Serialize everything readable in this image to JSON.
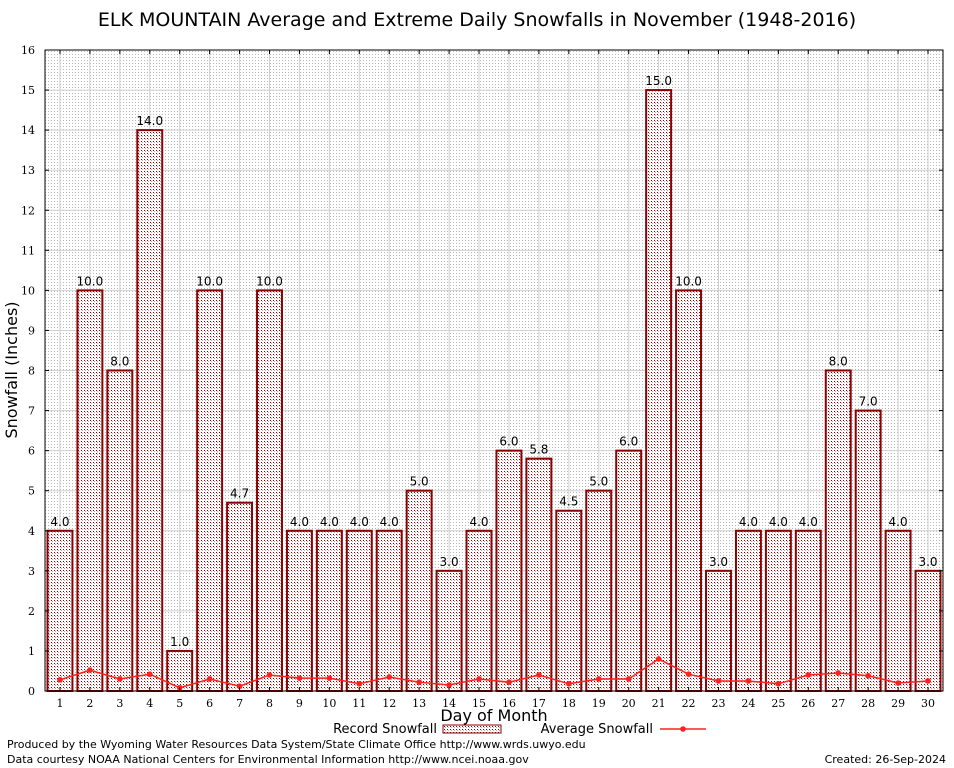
{
  "chart_data": {
    "type": "bar",
    "title": "ELK MOUNTAIN Average and Extreme Daily Snowfalls in November (1948-2016)",
    "xlabel": "Day of Month",
    "ylabel": "Snowfall (Inches)",
    "ylim": [
      0,
      16
    ],
    "yticks": [
      "0",
      "1",
      "2",
      "3",
      "4",
      "5",
      "6",
      "7",
      "8",
      "9",
      "10",
      "11",
      "12",
      "13",
      "14",
      "15",
      "16"
    ],
    "categories": [
      "1",
      "2",
      "3",
      "4",
      "5",
      "6",
      "7",
      "8",
      "9",
      "10",
      "11",
      "12",
      "13",
      "14",
      "15",
      "16",
      "17",
      "18",
      "19",
      "20",
      "21",
      "22",
      "23",
      "24",
      "25",
      "26",
      "27",
      "28",
      "29",
      "30"
    ],
    "series": [
      {
        "name": "Record Snowfall",
        "type": "bar",
        "color": "#8b0000",
        "values": [
          4.0,
          10.0,
          8.0,
          14.0,
          1.0,
          10.0,
          4.7,
          10.0,
          4.0,
          4.0,
          4.0,
          4.0,
          5.0,
          3.0,
          4.0,
          6.0,
          5.8,
          4.5,
          5.0,
          6.0,
          15.0,
          10.0,
          3.0,
          4.0,
          4.0,
          4.0,
          8.0,
          7.0,
          4.0,
          3.0
        ],
        "labels": [
          "4.0",
          "10.0",
          "8.0",
          "14.0",
          "1.0",
          "10.0",
          "4.7",
          "10.0",
          "4.0",
          "4.0",
          "4.0",
          "4.0",
          "5.0",
          "3.0",
          "4.0",
          "6.0",
          "5.8",
          "4.5",
          "5.0",
          "6.0",
          "15.0",
          "10.0",
          "3.0",
          "4.0",
          "4.0",
          "4.0",
          "8.0",
          "7.0",
          "4.0",
          "3.0"
        ]
      },
      {
        "name": "Average Snowfall",
        "type": "line",
        "color": "#ff2020",
        "values": [
          0.28,
          0.52,
          0.3,
          0.42,
          0.08,
          0.3,
          0.12,
          0.4,
          0.32,
          0.32,
          0.18,
          0.35,
          0.22,
          0.15,
          0.3,
          0.22,
          0.4,
          0.18,
          0.3,
          0.3,
          0.8,
          0.42,
          0.25,
          0.25,
          0.18,
          0.4,
          0.45,
          0.38,
          0.2,
          0.25
        ]
      }
    ],
    "legend": "bottom-center",
    "grid": true
  },
  "footer": {
    "produced_by": "Produced by the Wyoming Water Resources Data System/State Climate Office http://www.wrds.uwyo.edu",
    "courtesy": "Data courtesy NOAA National Centers for Environmental Information http://www.ncei.noaa.gov",
    "created": "Created:  26-Sep-2024"
  }
}
